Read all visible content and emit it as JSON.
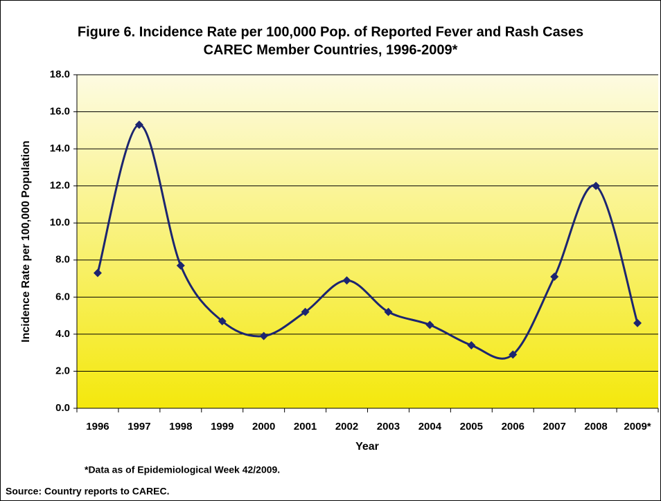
{
  "chart_data": {
    "type": "line",
    "title": "Figure 6. Incidence Rate per 100,000 Pop. of Reported Fever and Rash Cases",
    "subtitle": "CAREC Member Countries, 1996-2009*",
    "y_label": "Incidence Rate per 100,000 Population",
    "x_label": "Year",
    "footnote": "*Data as of Epidemiological Week 42/2009.",
    "source": "Source: Country reports to CAREC.",
    "categories": [
      "1996",
      "1997",
      "1998",
      "1999",
      "2000",
      "2001",
      "2002",
      "2003",
      "2004",
      "2005",
      "2006",
      "2007",
      "2008",
      "2009*"
    ],
    "series": [
      {
        "name": "Incidence Rate",
        "color": "#1c2570",
        "values": [
          7.3,
          15.3,
          7.7,
          4.7,
          3.9,
          5.2,
          6.9,
          5.2,
          4.5,
          3.4,
          2.9,
          7.1,
          12.0,
          4.6
        ]
      }
    ],
    "ylim": [
      0,
      18
    ],
    "yticks": [
      {
        "value": 0,
        "label": "0.0"
      },
      {
        "value": 2,
        "label": "2.0"
      },
      {
        "value": 4,
        "label": "4.0"
      },
      {
        "value": 6,
        "label": "6.0"
      },
      {
        "value": 8,
        "label": "8.0"
      },
      {
        "value": 10,
        "label": "10.0"
      },
      {
        "value": 12,
        "label": "12.0"
      },
      {
        "value": 14,
        "label": "14.0"
      },
      {
        "value": 16,
        "label": "16.0"
      },
      {
        "value": 18,
        "label": "18.0"
      }
    ],
    "grid": true,
    "smooth": true
  }
}
